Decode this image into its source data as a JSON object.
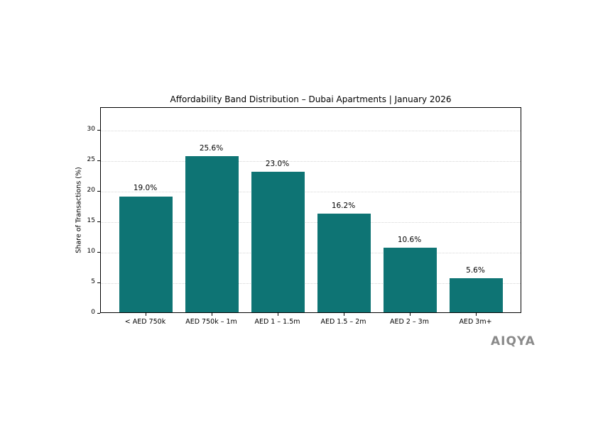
{
  "chart_data": {
    "type": "bar",
    "title": "Affordability Band Distribution – Dubai Apartments | January 2026",
    "xlabel": "",
    "ylabel": "Share of Transactions (%)",
    "categories": [
      "< AED 750k",
      "AED 750k – 1m",
      "AED 1 – 1.5m",
      "AED 1.5 – 2m",
      "AED 2 – 3m",
      "AED 3m+"
    ],
    "values": [
      19.0,
      25.6,
      23.0,
      16.2,
      10.6,
      5.6
    ],
    "value_labels": [
      "19.0%",
      "25.6%",
      "23.0%",
      "16.2%",
      "10.6%",
      "5.6%"
    ],
    "ylim": [
      0,
      33.7
    ],
    "yticks": [
      0,
      5,
      10,
      15,
      20,
      25,
      30
    ],
    "grid": {
      "y": true,
      "x": false,
      "style": "dotted"
    },
    "legend": null,
    "bar_color": "#0e7474"
  },
  "watermark": "AIQYA"
}
